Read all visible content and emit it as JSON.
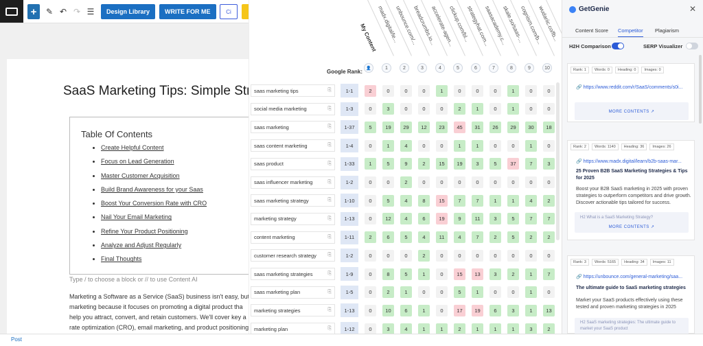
{
  "topbar": {
    "design_library": "Design Library",
    "write_for_me": "WRITE FOR ME",
    "ce_badge": "Ci"
  },
  "post": {
    "title": "SaaS Marketing Tips: Simple Stra",
    "toc_heading": "Table Of Contents",
    "toc_items": [
      "Create Helpful Content",
      "Focus on Lead Generation",
      "Master Customer Acquisition",
      "Build Brand Awareness for your Saas",
      "Boost Your Conversion Rate with CRO",
      "Nail Your Email Marketing",
      "Refine Your Product Positioning",
      "Analyze and Adjust Regularly",
      "Final Thoughts"
    ],
    "hint": "Type / to choose a block or // to use Content AI",
    "paragraph": [
      "Marketing a Software as a Service (SaaS) business isn't easy, but",
      "marketing because it focuses on promoting a digital product tha",
      "help you attract, convert, and retain customers. We'll cover key a",
      "rate optimization (CRO), email marketing, and product positioning"
    ]
  },
  "status": {
    "post": "Post"
  },
  "competitor": {
    "google_rank_label": "Google Rank:",
    "my_content": "My Content",
    "domains": [
      "madx.digital/le...",
      "unbounce.com/...",
      "breadcrumbs.io...",
      "accelerate-agen...",
      "clickup.com/bl...",
      "strategyhat.com...",
      "saasacademy.c...",
      "skale.so/saas-...",
      "cognism.com/b...",
      "wudariic.co/fb..."
    ],
    "rank_numbers": [
      "1",
      "2",
      "3",
      "4",
      "5",
      "6",
      "7",
      "8",
      "9",
      "10"
    ],
    "rows": [
      {
        "kw": "saas marketing tips",
        "rank": "1-1",
        "cells": [
          "2",
          "0",
          "0",
          "0",
          "1",
          "0",
          "0",
          "0",
          "1",
          "0",
          "0"
        ],
        "cls": [
          "r",
          "n",
          "n",
          "n",
          "g",
          "n",
          "n",
          "n",
          "g",
          "n",
          "n"
        ]
      },
      {
        "kw": "social media marketing",
        "rank": "1-3",
        "cells": [
          "0",
          "3",
          "0",
          "0",
          "0",
          "2",
          "1",
          "0",
          "1",
          "0",
          "0"
        ],
        "cls": [
          "n",
          "g",
          "n",
          "n",
          "n",
          "g",
          "g",
          "n",
          "g",
          "n",
          "n"
        ]
      },
      {
        "kw": "saas marketing",
        "rank": "1-37",
        "cells": [
          "5",
          "19",
          "29",
          "12",
          "23",
          "45",
          "31",
          "26",
          "29",
          "30",
          "18"
        ],
        "cls": [
          "g",
          "g",
          "g",
          "g",
          "g",
          "r",
          "g",
          "g",
          "g",
          "g",
          "g"
        ]
      },
      {
        "kw": "saas content marketing",
        "rank": "1-4",
        "cells": [
          "0",
          "1",
          "4",
          "0",
          "0",
          "1",
          "1",
          "0",
          "0",
          "1",
          "0"
        ],
        "cls": [
          "n",
          "g",
          "g",
          "n",
          "n",
          "g",
          "g",
          "n",
          "n",
          "g",
          "n"
        ]
      },
      {
        "kw": "saas product",
        "rank": "1-33",
        "cells": [
          "1",
          "5",
          "9",
          "2",
          "15",
          "19",
          "3",
          "5",
          "37",
          "7",
          "3"
        ],
        "cls": [
          "g",
          "g",
          "g",
          "g",
          "g",
          "g",
          "g",
          "g",
          "r",
          "g",
          "g"
        ]
      },
      {
        "kw": "saas influencer marketing",
        "rank": "1-2",
        "cells": [
          "0",
          "0",
          "2",
          "0",
          "0",
          "0",
          "0",
          "0",
          "0",
          "0",
          "0"
        ],
        "cls": [
          "n",
          "n",
          "g",
          "n",
          "n",
          "n",
          "n",
          "n",
          "n",
          "n",
          "n"
        ]
      },
      {
        "kw": "saas marketing strategy",
        "rank": "1-10",
        "cells": [
          "0",
          "5",
          "4",
          "8",
          "15",
          "7",
          "7",
          "1",
          "1",
          "4",
          "2"
        ],
        "cls": [
          "n",
          "g",
          "g",
          "g",
          "r",
          "g",
          "g",
          "g",
          "g",
          "g",
          "g"
        ]
      },
      {
        "kw": "marketing strategy",
        "rank": "1-13",
        "cells": [
          "0",
          "12",
          "4",
          "6",
          "19",
          "9",
          "11",
          "3",
          "5",
          "7",
          "7"
        ],
        "cls": [
          "n",
          "g",
          "g",
          "g",
          "r",
          "g",
          "g",
          "g",
          "g",
          "g",
          "g"
        ]
      },
      {
        "kw": "content marketing",
        "rank": "1-11",
        "cells": [
          "2",
          "6",
          "5",
          "4",
          "11",
          "4",
          "7",
          "2",
          "5",
          "2",
          "2"
        ],
        "cls": [
          "g",
          "g",
          "g",
          "g",
          "g",
          "g",
          "g",
          "g",
          "g",
          "g",
          "g"
        ]
      },
      {
        "kw": "customer research strategy",
        "rank": "1-2",
        "cells": [
          "0",
          "0",
          "0",
          "2",
          "0",
          "0",
          "0",
          "0",
          "0",
          "0",
          "0"
        ],
        "cls": [
          "n",
          "n",
          "n",
          "g",
          "n",
          "n",
          "n",
          "n",
          "n",
          "n",
          "n"
        ]
      },
      {
        "kw": "saas marketing strategies",
        "rank": "1-9",
        "cells": [
          "0",
          "8",
          "5",
          "1",
          "0",
          "15",
          "13",
          "3",
          "2",
          "1",
          "7"
        ],
        "cls": [
          "n",
          "g",
          "g",
          "g",
          "n",
          "r",
          "r",
          "g",
          "g",
          "g",
          "g"
        ]
      },
      {
        "kw": "saas marketing plan",
        "rank": "1-5",
        "cells": [
          "0",
          "2",
          "1",
          "0",
          "0",
          "5",
          "1",
          "0",
          "0",
          "1",
          "0"
        ],
        "cls": [
          "n",
          "g",
          "g",
          "n",
          "n",
          "g",
          "g",
          "n",
          "n",
          "g",
          "n"
        ]
      },
      {
        "kw": "marketing strategies",
        "rank": "1-13",
        "cells": [
          "0",
          "10",
          "6",
          "1",
          "0",
          "17",
          "19",
          "6",
          "3",
          "1",
          "13"
        ],
        "cls": [
          "n",
          "g",
          "g",
          "g",
          "n",
          "r",
          "r",
          "g",
          "g",
          "g",
          "g"
        ]
      },
      {
        "kw": "marketing plan",
        "rank": "1-12",
        "cells": [
          "0",
          "3",
          "4",
          "1",
          "1",
          "2",
          "1",
          "1",
          "1",
          "3",
          "2"
        ],
        "cls": [
          "n",
          "g",
          "g",
          "g",
          "g",
          "g",
          "g",
          "g",
          "g",
          "g",
          "g"
        ]
      }
    ]
  },
  "sidebar": {
    "brand": "GetGenie",
    "tabs": [
      "Content Score",
      "Competitor",
      "Plagiarism"
    ],
    "h2h_label": "H2H Comparison",
    "serp_label": "SERP Visualizer",
    "cards": [
      {
        "badges": [
          "Rank: 1",
          "Words: 0",
          "Heading: 0",
          "Images: 0"
        ],
        "url": "https://www.reddit.com/r/SaaS/comments/s0i...",
        "title": "",
        "desc": "",
        "h2": "",
        "more": "MORE CONTENTS"
      },
      {
        "badges": [
          "Rank: 2",
          "Words: 1140",
          "Heading: 36",
          "Images: 26"
        ],
        "url": "https://www.madx.digital/learn/b2b-saas-mar...",
        "title": "25 Proven B2B SaaS Marketing Strategies & Tips for 2025",
        "desc": "Boost your B2B SaaS marketing in 2025 with proven strategies to outperform competitors and drive growth. Discover actionable tips tailored for success.",
        "h2": "What is a SaaS Marketing Strategy?",
        "more": "MORE CONTENTS"
      },
      {
        "badges": [
          "Rank: 3",
          "Words: 5165",
          "Heading: 34",
          "Images: 11"
        ],
        "url": "https://unbounce.com/general-marketing/saa...",
        "title": "The ultimate guide to SaaS marketing strategies",
        "desc": "Market your SaaS products effectively using these tested and proven marketing strategies in 2025",
        "h2": "SaaS marketing strategies: The ultimate guide to market your SaaS product",
        "more": "MORE CONTENTS"
      }
    ],
    "colors": {
      "accent": "#2b5bd7",
      "toggle_on": "#2b5bd7",
      "toggle_off": "#d0d5dd"
    }
  }
}
